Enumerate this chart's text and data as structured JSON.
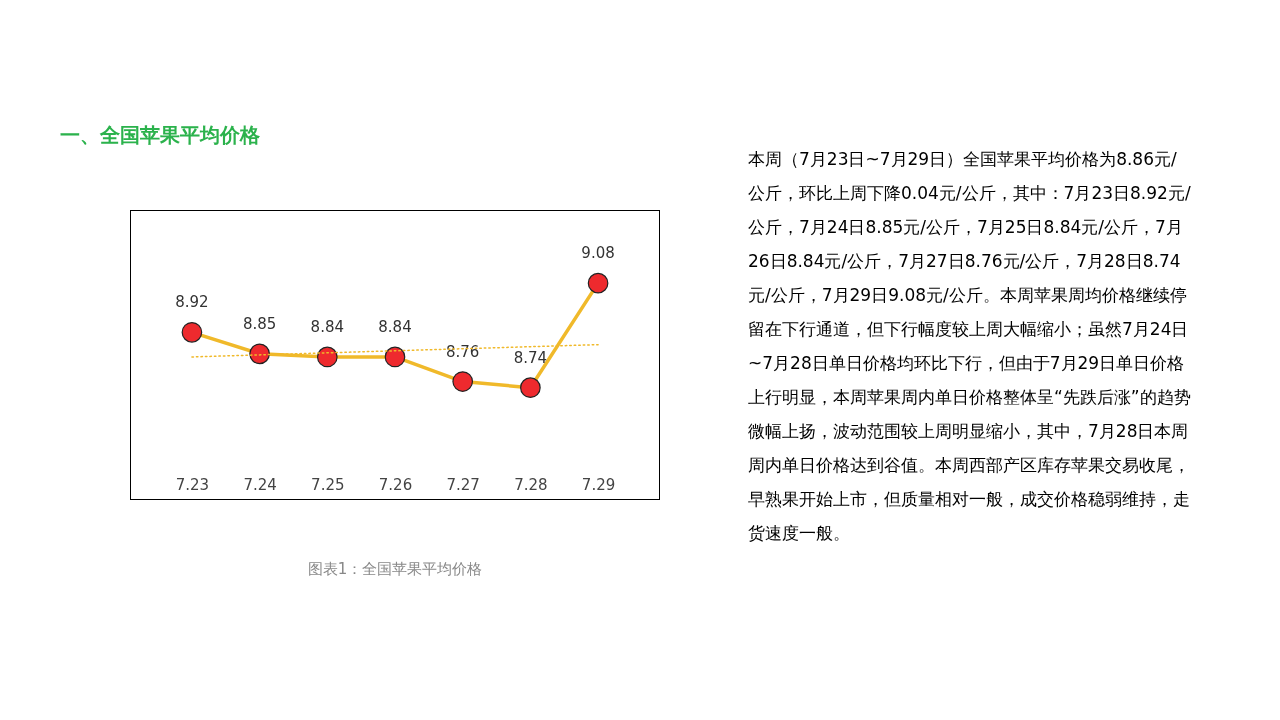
{
  "chart_data": {
    "type": "line",
    "title": "一、全国苹果平均价格",
    "categories": [
      "7.23",
      "7.24",
      "7.25",
      "7.26",
      "7.27",
      "7.28",
      "7.29"
    ],
    "series": [
      {
        "color": "#f0b92a",
        "colors": [
          "#ee2a2e",
          "#ee2a2e",
          "#ee2a2e",
          "#ee2a2e",
          "#ee2a2e",
          "#ee2a2e",
          "#ee2a2e"
        ],
        "values": [
          8.92,
          8.85,
          8.84,
          8.84,
          8.76,
          8.74,
          9.08
        ],
        "value_labels": [
          "8.92",
          "8.85",
          "8.84",
          "8.84",
          "8.76",
          "8.74",
          "9.08"
        ]
      },
      {
        "type": "line",
        "x": [
          "7.23",
          "7.29"
        ],
        "values": [
          8.84,
          8.88
        ],
        "color": "#f0b92a",
        "line_style": "dotted",
        "marker": "none"
      }
    ],
    "marker": "circle",
    "annotations": [
      "图表1：全国苹果平均价格",
      "本周（7月23日~7月29日）全国苹果平均价格为8.86元/公斤，环比上周下降0.04元/公斤，其中：7月23日8.92元/公斤，7月24日8.85元/公斤，7月25日8.84元/公斤，7月26日8.84元/公斤，7月27日8.76元/公斤，7月28日8.74元/公斤，7月29日9.08元/公斤。本周苹果周均价格继续停留在下行通道，但下行幅度较上周大幅缩小；虽然7月24日~7月28日单日价格均环比下行，但由于7月29日单日价格上行明显，本周苹果周内单日价格整体呈“先跌后涨”的趋势微幅上扬，波动范围较上周明显缩小，其中，7月28日本周周内单日价格达到谷值。本周西部产区库存苹果交易收尾，早熟果开始上市，但质量相对一般，成交价格稳弱维持，走货速度一般。"
    ]
  }
}
